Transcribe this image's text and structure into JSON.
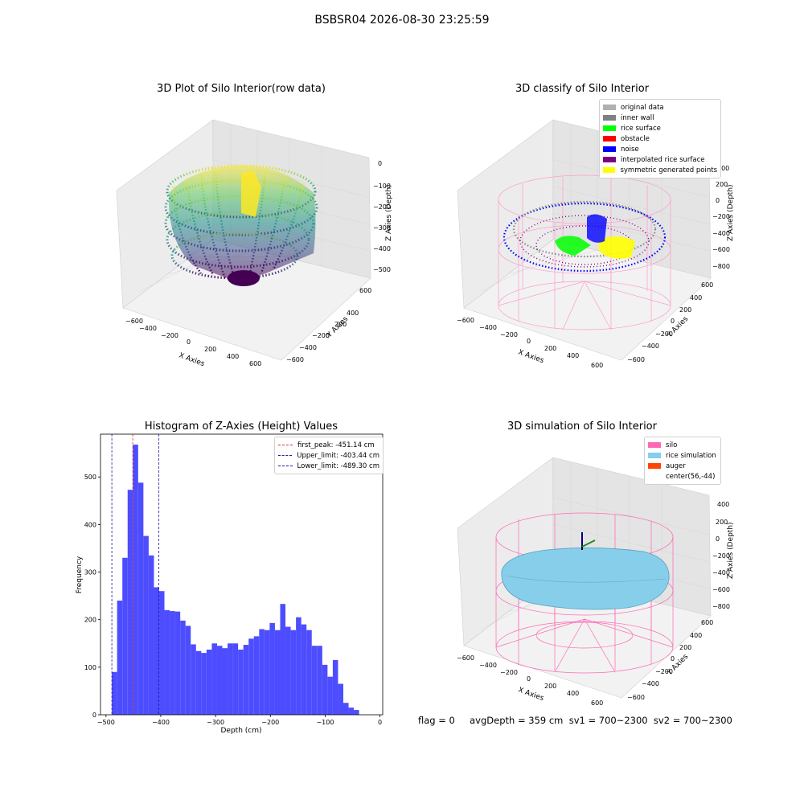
{
  "suptitle": "BSBSR04 2026-08-30 23:25:59",
  "panels": {
    "raw": {
      "title": "3D Plot of Silo Interior(row data)",
      "xlabel": "X Axies",
      "ylabel": "Y Axies",
      "zlabel": "Z Axies (Depth)",
      "xticks": [
        "−600",
        "−400",
        "−200",
        "0",
        "200",
        "400",
        "600"
      ],
      "yticks": [
        "600",
        "400",
        "200",
        "0",
        "−200",
        "−400",
        "−600"
      ],
      "zticks": [
        "0",
        "−100",
        "−200",
        "−300",
        "−400",
        "−500"
      ]
    },
    "classify": {
      "title": "3D classify of Silo Interior",
      "xlabel": "X Axies",
      "ylabel": "Y Axies",
      "zlabel": "Z Axies (Depth)",
      "xticks": [
        "−600",
        "−400",
        "−200",
        "0",
        "200",
        "400",
        "600"
      ],
      "yticks": [
        "600",
        "400",
        "200",
        "0",
        "−200",
        "−400",
        "−600"
      ],
      "zticks": [
        "400",
        "200",
        "0",
        "−200",
        "−400",
        "−600",
        "−800"
      ],
      "legend": [
        {
          "label": "original data",
          "color": "#b0b0b0"
        },
        {
          "label": "inner wall",
          "color": "#808080"
        },
        {
          "label": "rice surface",
          "color": "#00ff00"
        },
        {
          "label": "obstacle",
          "color": "#ff0000"
        },
        {
          "label": "noise",
          "color": "#0000ff"
        },
        {
          "label": "interpolated rice surface",
          "color": "#800080"
        },
        {
          "label": "symmetric generated points",
          "color": "#ffff00"
        }
      ]
    },
    "simulation": {
      "title": "3D simulation of Silo Interior",
      "xlabel": "X Axies",
      "ylabel": "Y Axies",
      "zlabel": "Z Axies (Depth)",
      "xticks": [
        "−600",
        "−400",
        "−200",
        "0",
        "200",
        "400",
        "600"
      ],
      "yticks": [
        "600",
        "400",
        "200",
        "0",
        "−200",
        "−400",
        "−600"
      ],
      "zticks": [
        "400",
        "200",
        "0",
        "−200",
        "−400",
        "−600",
        "−800"
      ],
      "legend": [
        {
          "label": "silo",
          "color": "#ff69b4"
        },
        {
          "label": "rice simulation",
          "color": "#87ceeb"
        },
        {
          "label": "auger",
          "color": "#ff4500"
        },
        {
          "label": "center(56,-44)",
          "color": ""
        }
      ]
    }
  },
  "footer": "flag = 0     avgDepth = 359 cm  sv1 = 700~2300  sv2 = 700~2300",
  "chart_data": {
    "type": "bar",
    "title": "Histogram of Z-Axies (Height) Values",
    "xlabel": "Depth (cm)",
    "ylabel": "Frequency",
    "xlim": [
      -510,
      5
    ],
    "ylim": [
      0,
      590
    ],
    "xticks": [
      -500,
      -400,
      -300,
      -200,
      -100,
      0
    ],
    "xtick_labels": [
      "−500",
      "−400",
      "−300",
      "−200",
      "−100",
      "0"
    ],
    "yticks": [
      0,
      100,
      200,
      300,
      400,
      500
    ],
    "bin_start": -489.3,
    "bin_width": 9.6,
    "color": "#4d4dff",
    "values": [
      90,
      240,
      330,
      473,
      568,
      488,
      376,
      335,
      268,
      260,
      220,
      218,
      217,
      198,
      187,
      148,
      134,
      130,
      137,
      150,
      145,
      140,
      150,
      150,
      137,
      147,
      160,
      165,
      180,
      178,
      193,
      178,
      233,
      185,
      178,
      205,
      190,
      178,
      145,
      145,
      105,
      80,
      115,
      65,
      25,
      15,
      10
    ],
    "vlines": [
      {
        "label": "first_peak: -451.14 cm",
        "x": -451.14,
        "color": "#e03030"
      },
      {
        "label": "Upper_limit: -403.44 cm",
        "x": -403.44,
        "color": "#1a1a9e"
      },
      {
        "label": "Lower_limit: -489.30 cm",
        "x": -489.3,
        "color": "#1a1a9e"
      }
    ]
  }
}
